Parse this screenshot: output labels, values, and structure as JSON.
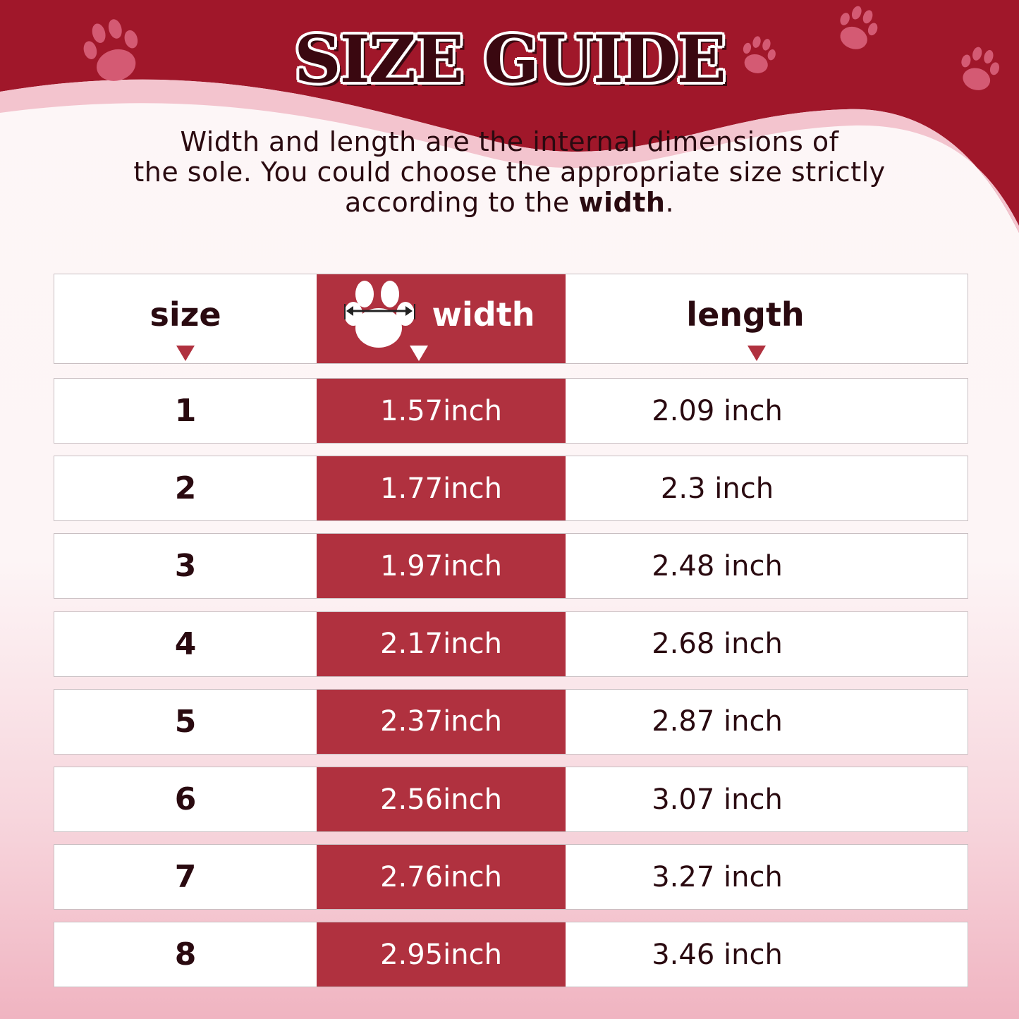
{
  "title": "SIZE GUIDE",
  "description": {
    "line1": "Width and length are the internal dimensions of",
    "line2": "the sole. You could choose the appropriate size strictly",
    "line3_prefix": "according to the ",
    "line3_bold": "width",
    "line3_suffix": "."
  },
  "colors": {
    "banner": "#a0172a",
    "width_column": "#b0313f",
    "text": "#2a0a10",
    "paw_decor": "#d45a73"
  },
  "table": {
    "headers": {
      "size": "size",
      "width": "width",
      "length": "length"
    },
    "rows": [
      {
        "size": "1",
        "width": "1.57inch",
        "length": "2.09 inch"
      },
      {
        "size": "2",
        "width": "1.77inch",
        "length": "2.3 inch"
      },
      {
        "size": "3",
        "width": "1.97inch",
        "length": "2.48 inch"
      },
      {
        "size": "4",
        "width": "2.17inch",
        "length": "2.68 inch"
      },
      {
        "size": "5",
        "width": "2.37inch",
        "length": "2.87 inch"
      },
      {
        "size": "6",
        "width": "2.56inch",
        "length": "3.07 inch"
      },
      {
        "size": "7",
        "width": "2.76inch",
        "length": "3.27 inch"
      },
      {
        "size": "8",
        "width": "2.95inch",
        "length": "3.46 inch"
      }
    ]
  }
}
